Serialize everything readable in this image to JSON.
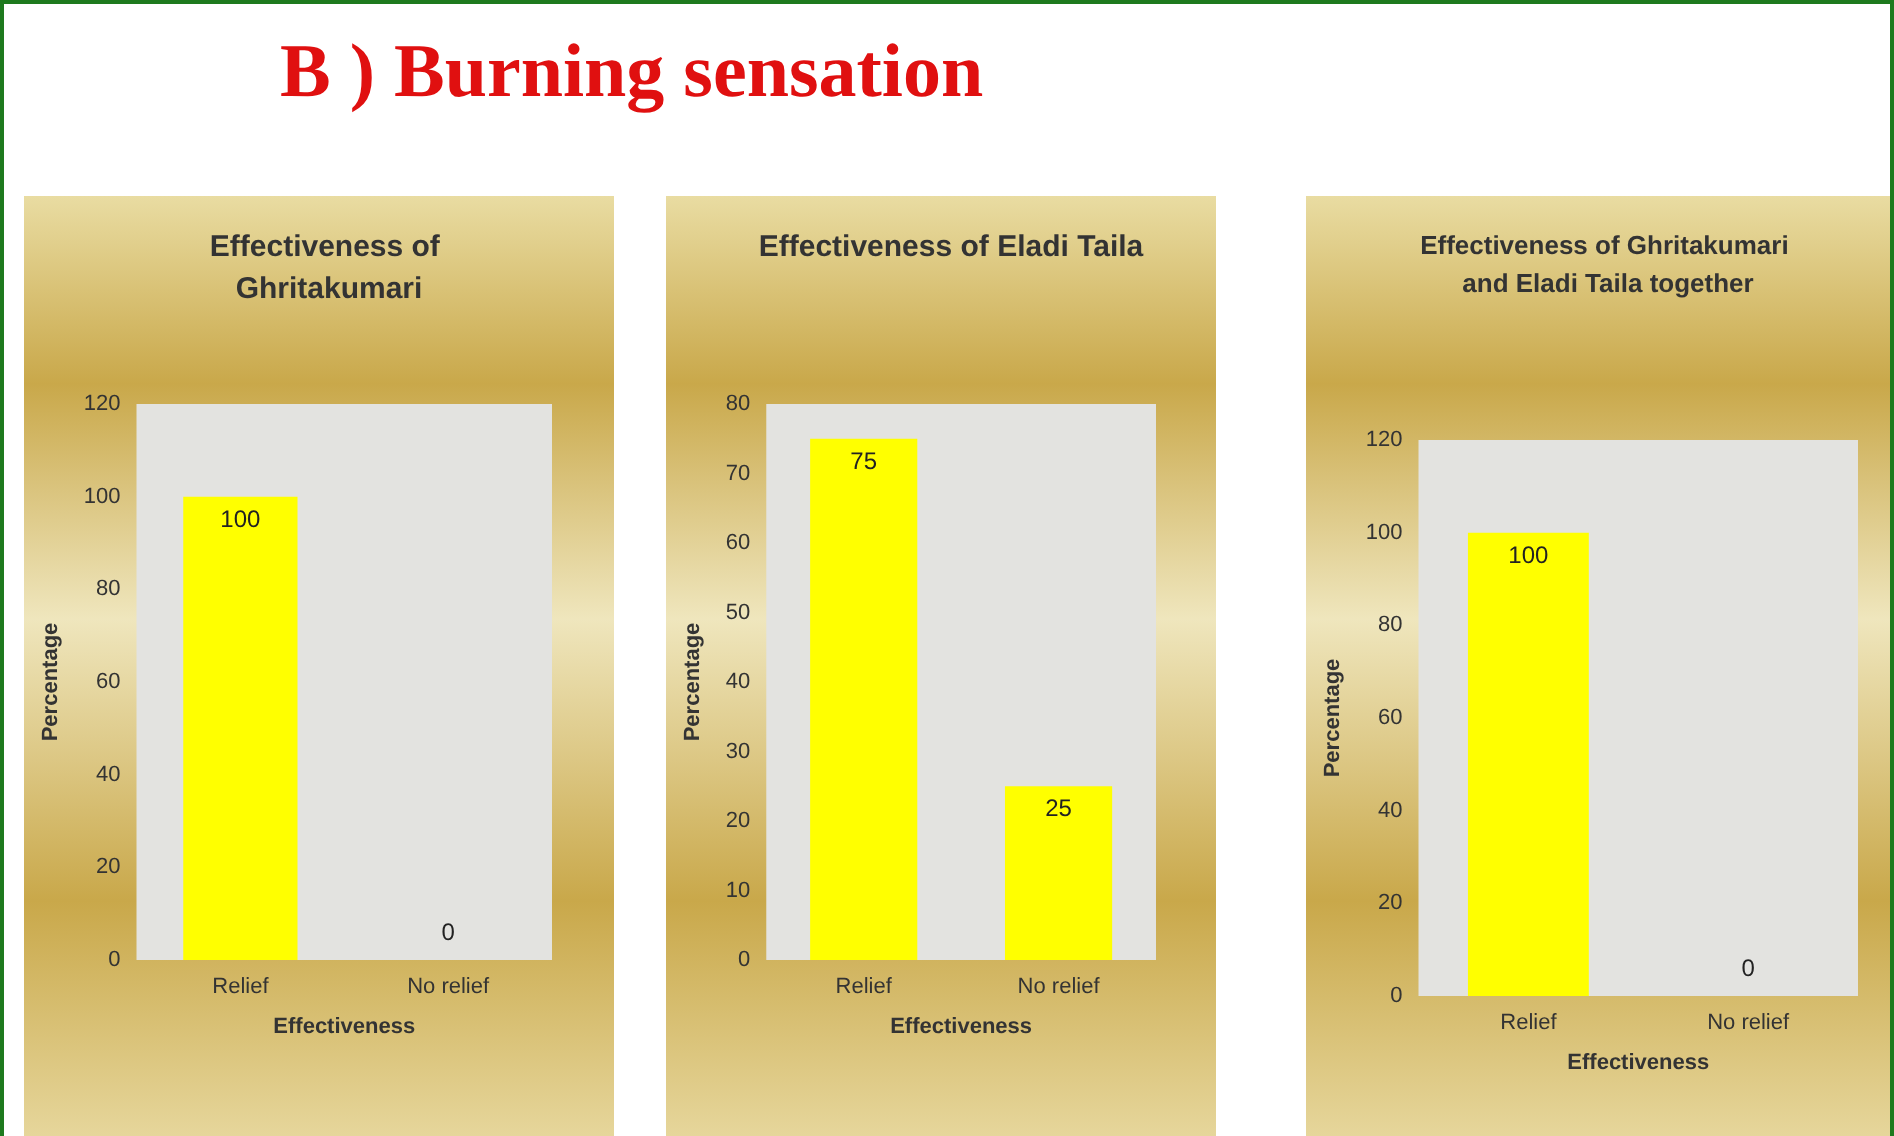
{
  "chart_data": [
    {
      "type": "bar",
      "title": "Effectiveness of Ghritakumari",
      "annotations": [
        "B ) Burning sensation"
      ],
      "xlabel": "Effectiveness",
      "ylabel": "Percentage",
      "categories": [
        "Relief",
        "No relief"
      ],
      "values": [
        100,
        0
      ],
      "color": "#ffff00",
      "ylim": [
        0,
        120
      ],
      "yticks": [
        0,
        20,
        40,
        60,
        80,
        100,
        120
      ],
      "data_labels": true,
      "grid": false
    },
    {
      "type": "bar",
      "title": "Effectiveness of Eladi Taila",
      "xlabel": "Effectiveness",
      "ylabel": "Percentage",
      "categories": [
        "Relief",
        "No relief"
      ],
      "values": [
        75,
        25
      ],
      "color": "#ffff00",
      "ylim": [
        0,
        80
      ],
      "yticks": [
        0,
        10,
        20,
        30,
        40,
        50,
        60,
        70,
        80
      ],
      "data_labels": true,
      "grid": false
    },
    {
      "type": "bar",
      "title": "Effectiveness of Ghritakumari and Eladi Taila together",
      "xlabel": "Effectiveness",
      "ylabel": "Percentage",
      "categories": [
        "Relief",
        "No relief"
      ],
      "values": [
        100,
        0
      ],
      "color": "#ffff00",
      "ylim": [
        0,
        120
      ],
      "yticks": [
        0,
        20,
        40,
        60,
        80,
        100,
        120
      ],
      "data_labels": true,
      "grid": false
    }
  ]
}
